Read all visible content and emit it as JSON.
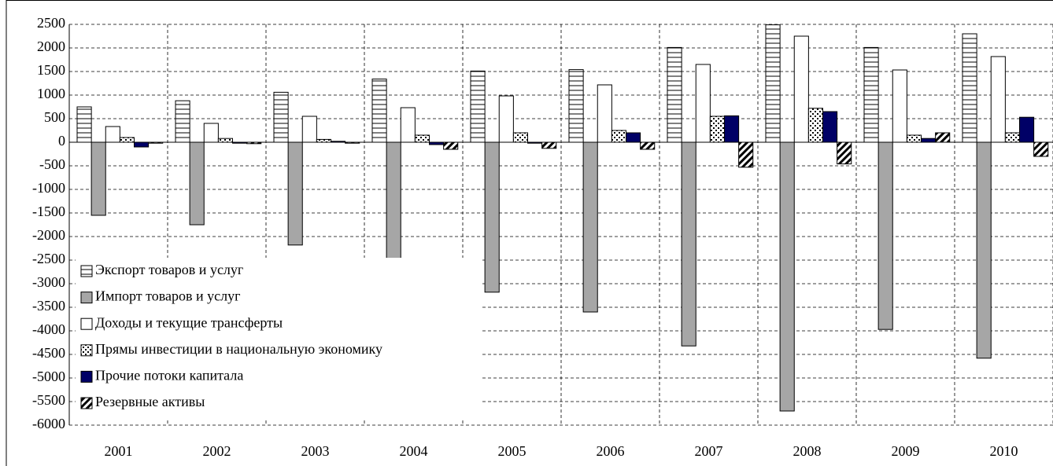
{
  "chart_data": {
    "type": "bar",
    "categories": [
      "2001",
      "2002",
      "2003",
      "2004",
      "2005",
      "2006",
      "2007",
      "2008",
      "2009",
      "2010"
    ],
    "series": [
      {
        "name": "Экспорт товаров и услуг",
        "color": "#ffffff",
        "pattern": "horizontal",
        "values": [
          750,
          880,
          1060,
          1340,
          1510,
          1540,
          2010,
          2490,
          2010,
          2300
        ]
      },
      {
        "name": "Импорт товаров и услуг",
        "color": "#a6a6a6",
        "values": [
          -1550,
          -1750,
          -2180,
          -2570,
          -3180,
          -3600,
          -4320,
          -5700,
          -3970,
          -4580
        ]
      },
      {
        "name": "Доходы и текущие трансферты",
        "color": "#ffffff",
        "values": [
          333,
          400,
          550,
          733,
          983,
          1217,
          1650,
          2250,
          1533,
          1817
        ]
      },
      {
        "name": "Прямы инвестиции в национальную экономику",
        "color": "#ffffff",
        "pattern": "dots",
        "values": [
          100,
          80,
          60,
          150,
          200,
          250,
          550,
          720,
          150,
          200
        ]
      },
      {
        "name": "Прочие потоки капитала",
        "color": "#000066",
        "values": [
          -100,
          -20,
          20,
          -50,
          -20,
          200,
          560,
          650,
          80,
          530
        ]
      },
      {
        "name": "Резервные активы",
        "color": "#ffffff",
        "pattern": "diagonal",
        "values": [
          -20,
          -30,
          -20,
          -150,
          -130,
          -150,
          -530,
          -460,
          200,
          -300
        ]
      }
    ],
    "ylim": [
      -6000,
      2500
    ],
    "yticks": [
      -6000,
      -5500,
      -5000,
      -4500,
      -4000,
      -3500,
      -3000,
      -2500,
      -2000,
      -1500,
      -1000,
      -500,
      0,
      500,
      1000,
      1500,
      2000,
      2500
    ],
    "grid": true
  }
}
